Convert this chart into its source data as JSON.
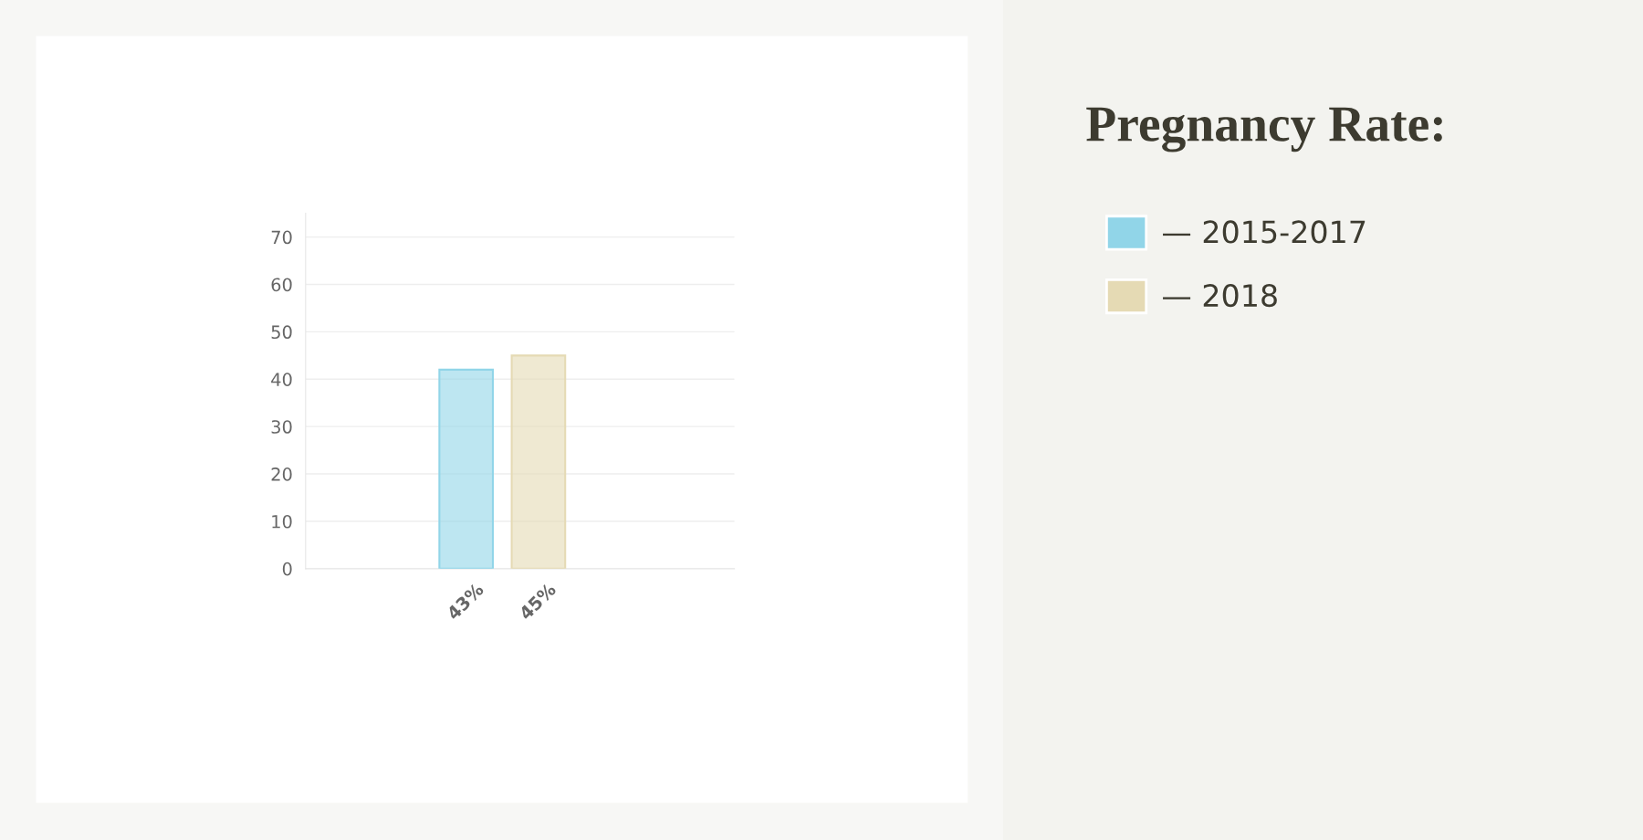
{
  "chart_data": {
    "type": "bar",
    "title": "Pregnancy Rate:",
    "categories": [
      "43%",
      "45%"
    ],
    "series": [
      {
        "name": "— 2015-2017",
        "color": "#91d5e8",
        "values": [
          42,
          null
        ]
      },
      {
        "name": "— 2018",
        "color": "#e5dab4",
        "values": [
          null,
          45
        ]
      }
    ],
    "ylim": [
      0,
      75
    ],
    "yticks": [
      0,
      10,
      20,
      30,
      40,
      50,
      60,
      70
    ],
    "grid": "y",
    "legend": "right"
  }
}
